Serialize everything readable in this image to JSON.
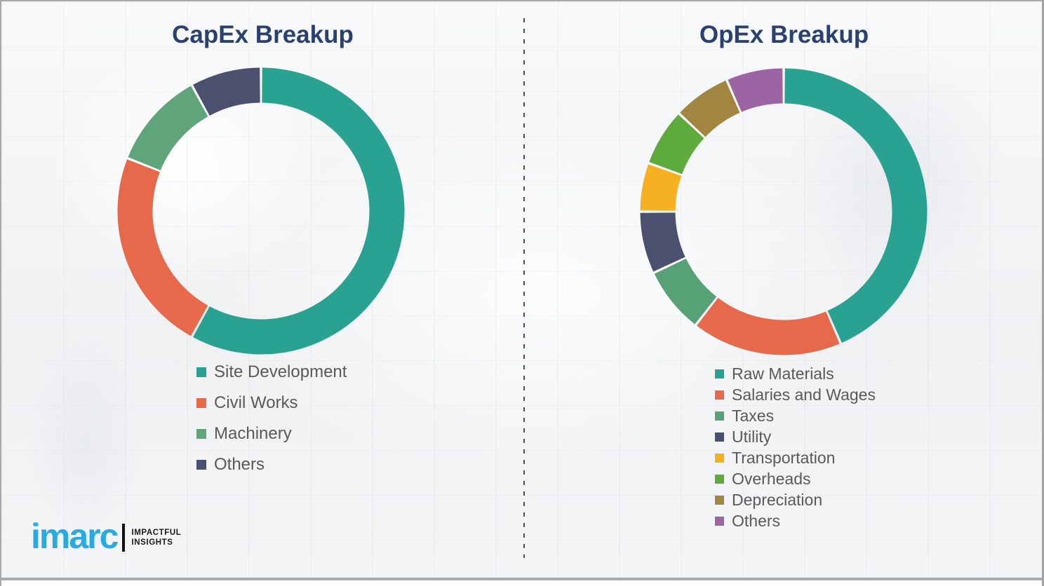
{
  "page": {
    "background_color": "#f3f4f6",
    "border_color": "#a9a9a9",
    "divider_color": "#4c4c4c",
    "bottom_rule_color": "#ababab",
    "title_color": "#2a406e",
    "legend_text_color": "#595959"
  },
  "chart_data": [
    {
      "type": "pie",
      "variant": "donut",
      "title": "CapEx Breakup",
      "start_angle_deg": 0,
      "direction": "clockwise",
      "legend_position": "bottom-left",
      "data_labels_shown": false,
      "segments": [
        {
          "label": "Site Development",
          "value_pct": 58,
          "color": "#2aa292"
        },
        {
          "label": "Civil Works",
          "value_pct": 23,
          "color": "#e5694a"
        },
        {
          "label": "Machinery",
          "value_pct": 11,
          "color": "#5fa47a"
        },
        {
          "label": "Others",
          "value_pct": 8,
          "color": "#4a506e"
        }
      ]
    },
    {
      "type": "pie",
      "variant": "donut",
      "title": "OpEx Breakup",
      "start_angle_deg": 0,
      "direction": "clockwise",
      "legend_position": "bottom-left",
      "data_labels_shown": false,
      "segments": [
        {
          "label": "Raw Materials",
          "value_pct": 43.5,
          "color": "#2aa292"
        },
        {
          "label": "Salaries and Wages",
          "value_pct": 17,
          "color": "#e5694a"
        },
        {
          "label": "Taxes",
          "value_pct": 7.5,
          "color": "#57a177"
        },
        {
          "label": "Utility",
          "value_pct": 7,
          "color": "#4a506e"
        },
        {
          "label": "Transportation",
          "value_pct": 5.5,
          "color": "#f6b123"
        },
        {
          "label": "Overheads",
          "value_pct": 6.5,
          "color": "#5faa3c"
        },
        {
          "label": "Depreciation",
          "value_pct": 6.5,
          "color": "#a28540"
        },
        {
          "label": "Others",
          "value_pct": 6.5,
          "color": "#9c64a3"
        }
      ]
    }
  ],
  "logo": {
    "brand": "imarc",
    "brand_color": "#29abe2",
    "tagline_line1": "IMPACTFUL",
    "tagline_line2": "INSIGHTS",
    "tagline_color": "#1a1a1a"
  }
}
